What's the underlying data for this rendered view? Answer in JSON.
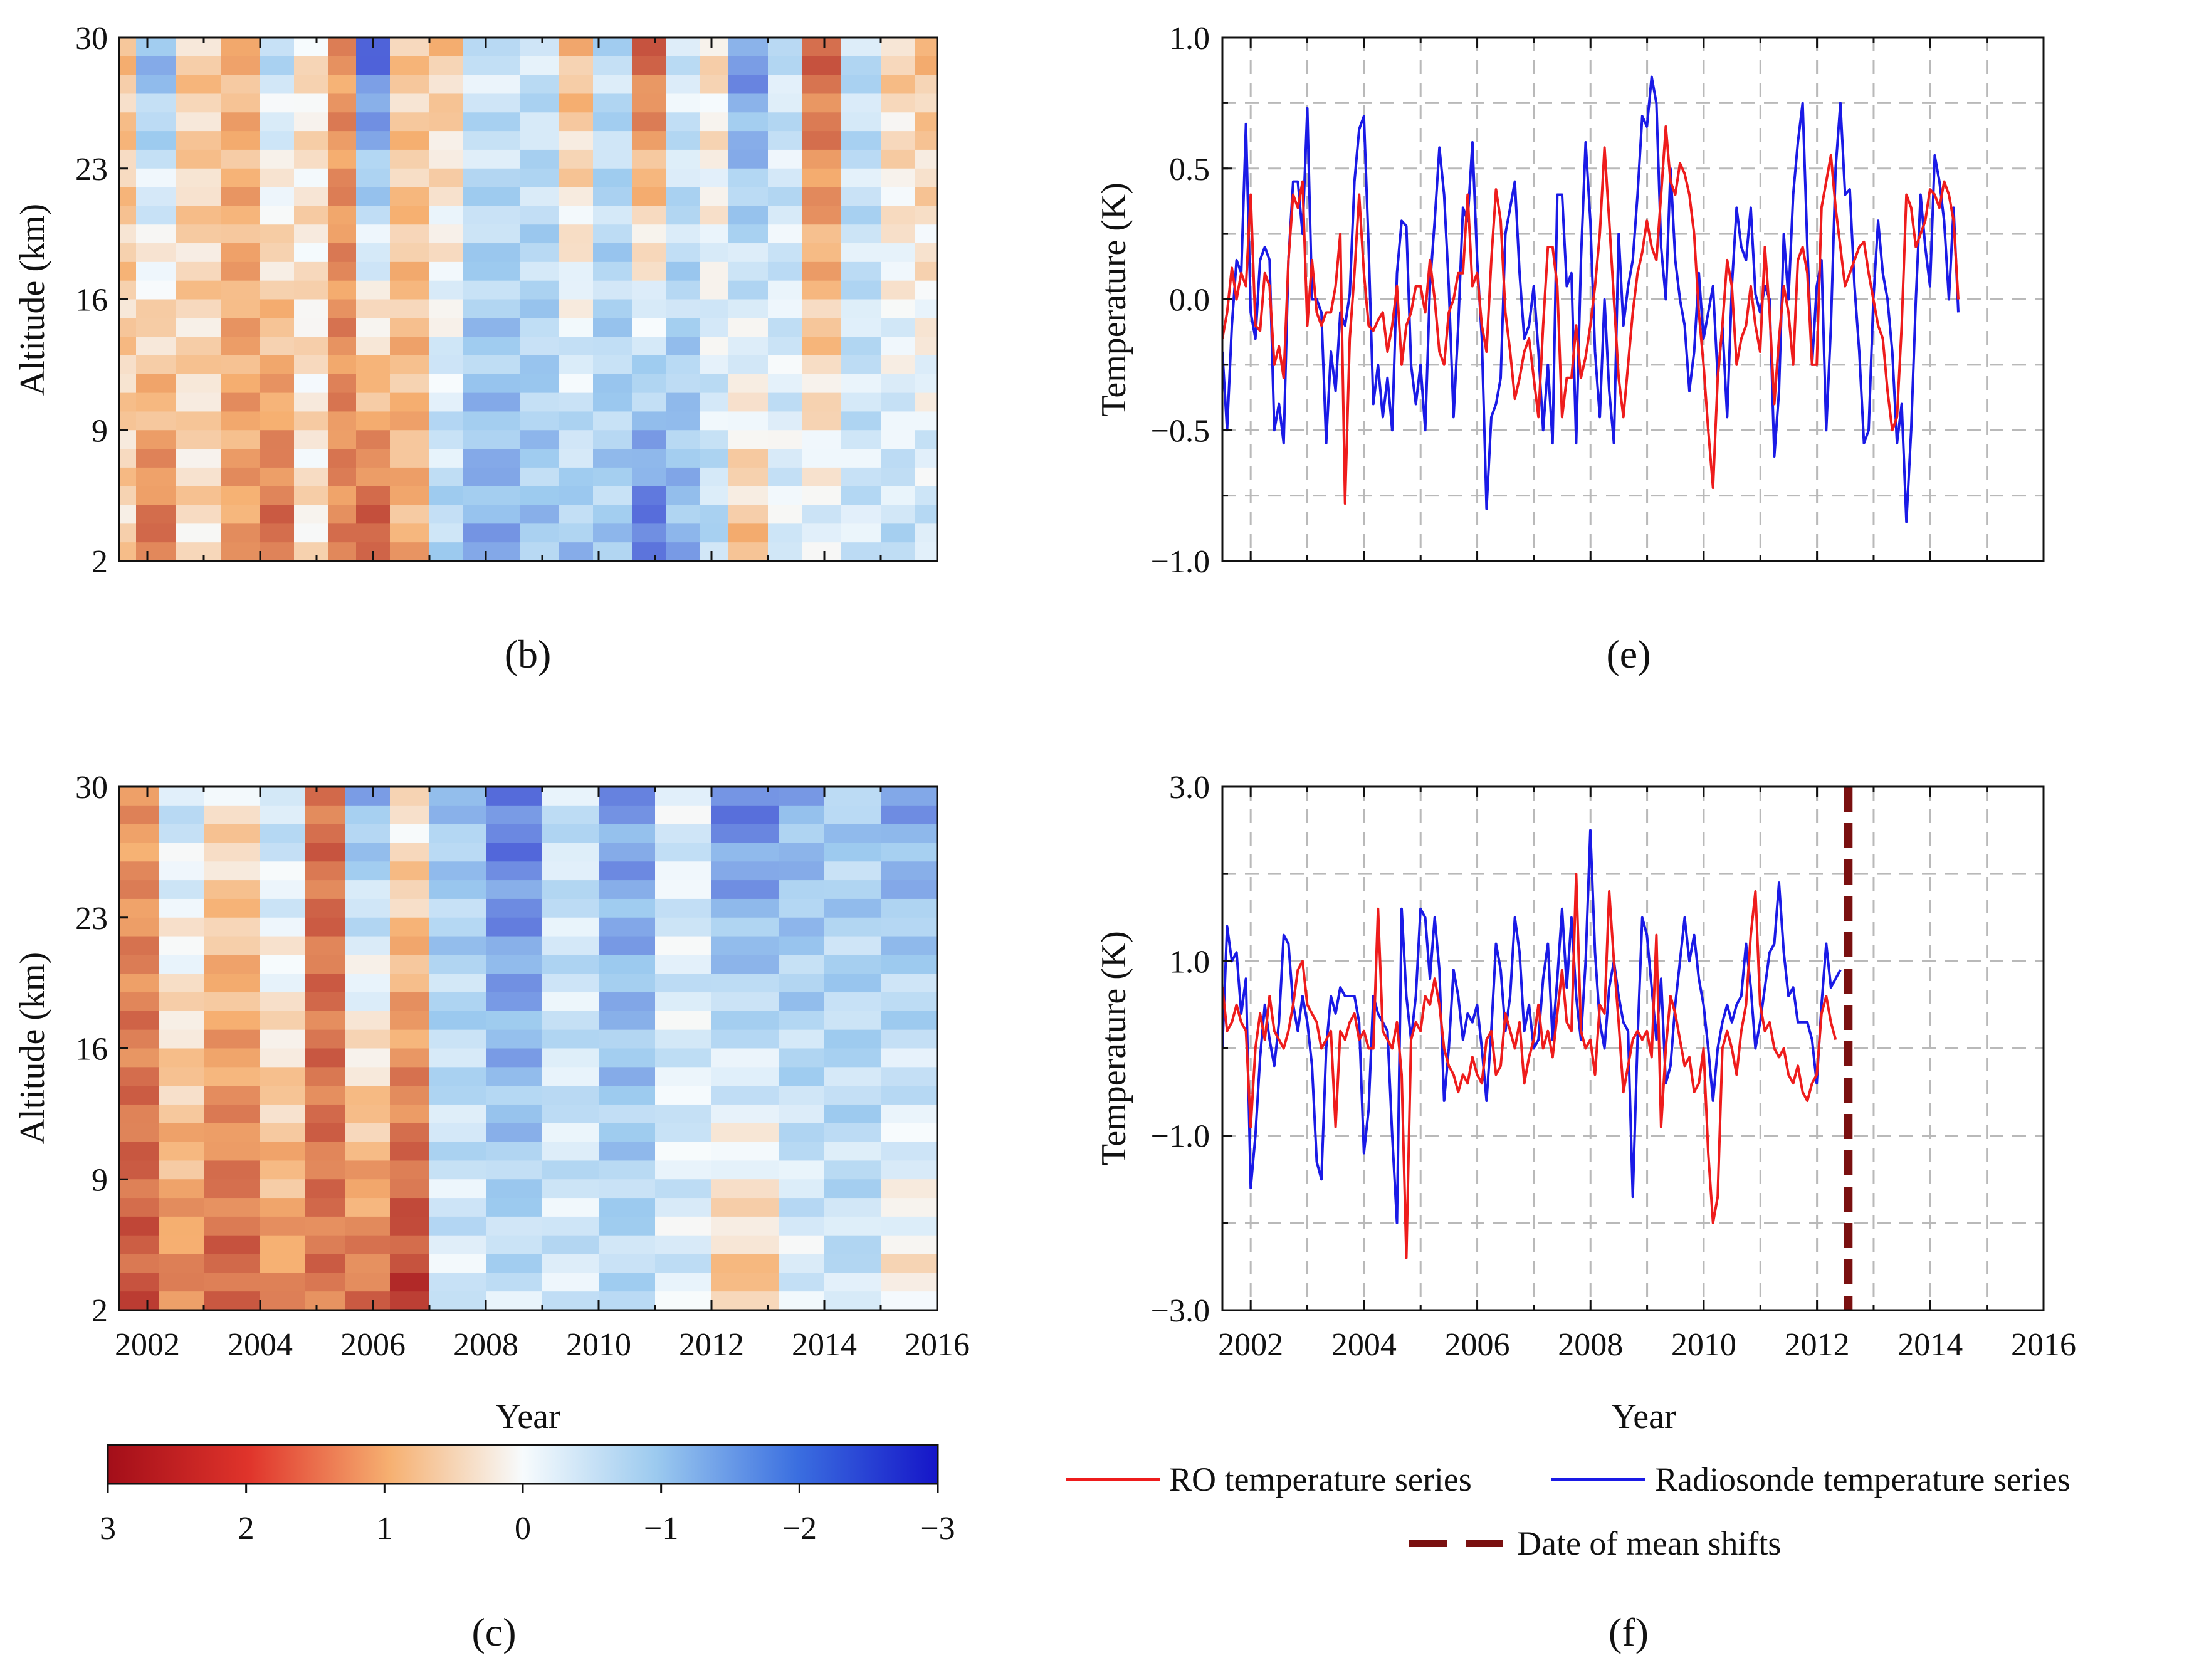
{
  "panels": {
    "b": {
      "label": "(b)"
    },
    "c": {
      "label": "(c)"
    },
    "e": {
      "label": "(e)"
    },
    "f": {
      "label": "(f)"
    }
  },
  "colorbar": {
    "ticks": [
      "3",
      "2",
      "1",
      "0",
      "−1",
      "−2",
      "−3"
    ],
    "range": [
      3,
      -3
    ],
    "colors": {
      "pos3": "#a30e19",
      "pos1": "#f6b071",
      "zero": "#f7fbfd",
      "neg1": "#9ccaef",
      "neg3": "#1515c8"
    }
  },
  "legend": {
    "ro": "RO temperature series",
    "radiosonde": "Radiosonde temperature series",
    "shift": "Date of mean shifts"
  },
  "chart_data": [
    {
      "id": "b",
      "type": "heatmap",
      "ylabel": "Altitude (km)",
      "xlabel": "",
      "yticks": [
        "2",
        "9",
        "16",
        "23",
        "30"
      ],
      "xlim": [
        2001.5,
        2016.0
      ],
      "ylim": [
        2,
        30
      ],
      "color_range": [
        -3,
        3
      ],
      "bands": [
        {
          "x": [
            2001.5,
            2001.8
          ],
          "top": 0.7,
          "bottom": 0.5
        },
        {
          "x": [
            2001.8,
            2002.5
          ],
          "top": -1.2,
          "bottom": 1.8
        },
        {
          "x": [
            2002.5,
            2003.3
          ],
          "top": 0.6,
          "bottom": 0.4
        },
        {
          "x": [
            2003.3,
            2004.0
          ],
          "top": 0.9,
          "bottom": 1.2
        },
        {
          "x": [
            2004.0,
            2004.6
          ],
          "top": -0.6,
          "bottom": 1.9
        },
        {
          "x": [
            2004.6,
            2005.2
          ],
          "top": 0.3,
          "bottom": 0.3
        },
        {
          "x": [
            2005.2,
            2005.7
          ],
          "top": 1.3,
          "bottom": 1.5
        },
        {
          "x": [
            2005.7,
            2006.3
          ],
          "top": -2.0,
          "bottom": 2.2
        },
        {
          "x": [
            2006.3,
            2007.0
          ],
          "top": 0.6,
          "bottom": 1.0
        },
        {
          "x": [
            2007.0,
            2007.6
          ],
          "top": 0.7,
          "bottom": -0.8
        },
        {
          "x": [
            2007.6,
            2008.6
          ],
          "top": -0.4,
          "bottom": -1.3
        },
        {
          "x": [
            2008.6,
            2009.3
          ],
          "top": -0.5,
          "bottom": -1.0
        },
        {
          "x": [
            2009.3,
            2009.9
          ],
          "top": 0.9,
          "bottom": -1.0
        },
        {
          "x": [
            2009.9,
            2010.6
          ],
          "top": -0.6,
          "bottom": -0.9
        },
        {
          "x": [
            2010.6,
            2011.2
          ],
          "top": 1.9,
          "bottom": -2.1
        },
        {
          "x": [
            2011.2,
            2011.8
          ],
          "top": -0.3,
          "bottom": -1.2
        },
        {
          "x": [
            2011.8,
            2012.3
          ],
          "top": 0.4,
          "bottom": -0.7
        },
        {
          "x": [
            2012.3,
            2013.0
          ],
          "top": -1.6,
          "bottom": 0.8
        },
        {
          "x": [
            2013.0,
            2013.6
          ],
          "top": -0.5,
          "bottom": -0.2
        },
        {
          "x": [
            2013.6,
            2014.3
          ],
          "top": 1.9,
          "bottom": -0.3
        },
        {
          "x": [
            2014.3,
            2015.0
          ],
          "top": -0.6,
          "bottom": -0.4
        },
        {
          "x": [
            2015.0,
            2015.6
          ],
          "top": 0.6,
          "bottom": -0.6
        },
        {
          "x": [
            2015.6,
            2016.0
          ],
          "top": 0.8,
          "bottom": -0.5
        }
      ]
    },
    {
      "id": "c",
      "type": "heatmap",
      "ylabel": "Altitude (km)",
      "xlabel": "Year",
      "yticks": [
        "2",
        "9",
        "16",
        "23",
        "30"
      ],
      "xticks": [
        "2002",
        "2004",
        "2006",
        "2008",
        "2010",
        "2012",
        "2014",
        "2016"
      ],
      "xlim": [
        2001.5,
        2016.0
      ],
      "ylim": [
        2,
        30
      ],
      "color_range": [
        -3,
        3
      ],
      "bands": [
        {
          "x": [
            2001.5,
            2002.2
          ],
          "top": 1.2,
          "bottom": 2.1
        },
        {
          "x": [
            2002.2,
            2003.0
          ],
          "top": -0.5,
          "bottom": 1.5
        },
        {
          "x": [
            2003.0,
            2004.0
          ],
          "top": 0.3,
          "bottom": 2.0
        },
        {
          "x": [
            2004.0,
            2004.8
          ],
          "top": -0.6,
          "bottom": 1.4
        },
        {
          "x": [
            2004.8,
            2005.5
          ],
          "top": 1.8,
          "bottom": 1.7
        },
        {
          "x": [
            2005.5,
            2006.3
          ],
          "top": -1.2,
          "bottom": 1.8
        },
        {
          "x": [
            2006.3,
            2007.0
          ],
          "top": 0.2,
          "bottom": 2.4
        },
        {
          "x": [
            2007.0,
            2008.0
          ],
          "top": -1.0,
          "bottom": -0.3
        },
        {
          "x": [
            2008.0,
            2009.0
          ],
          "top": -1.9,
          "bottom": -0.5
        },
        {
          "x": [
            2009.0,
            2010.0
          ],
          "top": -0.5,
          "bottom": -0.4
        },
        {
          "x": [
            2010.0,
            2011.0
          ],
          "top": -1.5,
          "bottom": -0.6
        },
        {
          "x": [
            2011.0,
            2012.0
          ],
          "top": -0.3,
          "bottom": -0.3
        },
        {
          "x": [
            2012.0,
            2013.2
          ],
          "top": -1.8,
          "bottom": 0.8
        },
        {
          "x": [
            2013.2,
            2014.0
          ],
          "top": -1.2,
          "bottom": -0.2
        },
        {
          "x": [
            2014.0,
            2015.0
          ],
          "top": -0.9,
          "bottom": -0.5
        },
        {
          "x": [
            2015.0,
            2016.0
          ],
          "top": -1.4,
          "bottom": 0.3
        }
      ]
    },
    {
      "id": "e",
      "type": "line",
      "ylabel": "Temperature (K)",
      "xlabel": "",
      "xlim": [
        2001.5,
        2016.0
      ],
      "ylim": [
        -1.0,
        1.0
      ],
      "yticks": [
        "1.0",
        "0.5",
        "0.0",
        "−0.5",
        "−1.0"
      ],
      "grid_x": [
        2002,
        2003,
        2004,
        2005,
        2006,
        2007,
        2008,
        2009,
        2010,
        2011,
        2012,
        2013,
        2014,
        2015
      ],
      "grid_y": [
        0.75,
        0.5,
        0.25,
        0,
        -0.25,
        -0.5,
        -0.75
      ],
      "x0": 2001.5,
      "dx": 0.0833,
      "series": [
        {
          "name": "RO temperature series",
          "color": "#ee1c1c",
          "values": [
            -0.15,
            -0.05,
            0.12,
            0.0,
            0.1,
            0.05,
            0.4,
            -0.1,
            -0.12,
            0.1,
            0.05,
            -0.25,
            -0.18,
            -0.3,
            0.15,
            0.4,
            0.35,
            0.45,
            -0.1,
            0.15,
            -0.05,
            -0.1,
            -0.05,
            -0.05,
            0.05,
            0.25,
            -0.78,
            -0.15,
            0.1,
            0.4,
            0.1,
            -0.1,
            -0.12,
            -0.08,
            -0.05,
            -0.2,
            -0.1,
            0.05,
            -0.25,
            -0.1,
            -0.05,
            0.05,
            0.05,
            -0.05,
            0.15,
            0.0,
            -0.2,
            -0.25,
            -0.05,
            0.0,
            0.1,
            0.1,
            0.4,
            0.05,
            0.1,
            -0.1,
            -0.2,
            0.15,
            0.42,
            0.3,
            -0.05,
            -0.2,
            -0.38,
            -0.3,
            -0.2,
            -0.15,
            -0.3,
            -0.45,
            -0.1,
            0.2,
            0.2,
            0.05,
            -0.45,
            -0.3,
            -0.3,
            -0.1,
            -0.3,
            -0.22,
            -0.1,
            0.05,
            0.25,
            0.58,
            0.3,
            0.0,
            -0.3,
            -0.45,
            -0.25,
            -0.05,
            0.1,
            0.18,
            0.3,
            0.2,
            0.15,
            0.4,
            0.66,
            0.45,
            0.4,
            0.52,
            0.48,
            0.4,
            0.25,
            -0.05,
            -0.25,
            -0.5,
            -0.72,
            -0.3,
            -0.1,
            0.15,
            0.05,
            -0.25,
            -0.15,
            -0.1,
            0.05,
            -0.1,
            -0.2,
            0.2,
            -0.05,
            -0.4,
            -0.15,
            0.05,
            -0.05,
            -0.25,
            0.15,
            0.2,
            0.1,
            -0.25,
            -0.25,
            0.35,
            0.45,
            0.55,
            0.35,
            0.2,
            0.05,
            0.1,
            0.15,
            0.2,
            0.22,
            0.1,
            0.0,
            -0.1,
            -0.15,
            -0.35,
            -0.5,
            -0.45,
            -0.1,
            0.4,
            0.35,
            0.2,
            0.25,
            0.3,
            0.42,
            0.4,
            0.35,
            0.45,
            0.4,
            0.3,
            0.0
          ]
        },
        {
          "name": "Radiosonde temperature series",
          "color": "#1a1ae6",
          "values": [
            -0.2,
            -0.5,
            -0.1,
            0.15,
            0.1,
            0.67,
            -0.05,
            -0.15,
            0.15,
            0.2,
            0.15,
            -0.5,
            -0.4,
            -0.55,
            0.15,
            0.45,
            0.45,
            0.25,
            0.73,
            0.0,
            0.0,
            -0.05,
            -0.55,
            -0.2,
            -0.35,
            -0.05,
            -0.1,
            0.02,
            0.45,
            0.65,
            0.7,
            0.2,
            -0.4,
            -0.25,
            -0.45,
            -0.3,
            -0.5,
            0.1,
            0.3,
            0.28,
            -0.25,
            -0.4,
            -0.25,
            -0.5,
            0.05,
            0.3,
            0.58,
            0.4,
            0.05,
            -0.45,
            -0.1,
            0.35,
            0.3,
            0.6,
            0.15,
            -0.15,
            -0.8,
            -0.45,
            -0.4,
            -0.3,
            0.25,
            0.35,
            0.45,
            0.1,
            -0.15,
            -0.1,
            0.05,
            -0.2,
            -0.5,
            -0.25,
            -0.55,
            0.4,
            0.4,
            0.05,
            0.1,
            -0.55,
            0.15,
            0.6,
            0.3,
            -0.2,
            -0.45,
            0.0,
            -0.35,
            -0.55,
            0.25,
            -0.1,
            0.05,
            0.15,
            0.4,
            0.7,
            0.66,
            0.85,
            0.75,
            0.2,
            0.0,
            0.5,
            0.15,
            0.0,
            -0.1,
            -0.35,
            -0.2,
            0.1,
            -0.15,
            -0.05,
            0.05,
            -0.3,
            -0.1,
            -0.45,
            0.05,
            0.35,
            0.2,
            0.15,
            0.35,
            0.02,
            -0.05,
            0.05,
            0.0,
            -0.6,
            -0.35,
            0.25,
            0.0,
            0.4,
            0.6,
            0.75,
            0.2,
            -0.25,
            0.05,
            0.15,
            -0.5,
            -0.1,
            0.5,
            0.75,
            0.4,
            0.42,
            0.05,
            -0.2,
            -0.55,
            -0.5,
            0.0,
            0.3,
            0.1,
            0.0,
            -0.2,
            -0.55,
            -0.4,
            -0.85,
            -0.5,
            0.0,
            0.4,
            0.2,
            0.05,
            0.55,
            0.45,
            0.3,
            0.0,
            0.35,
            -0.05
          ]
        }
      ]
    },
    {
      "id": "f",
      "type": "line",
      "ylabel": "Temperature (K)",
      "xlabel": "Year",
      "xlim": [
        2001.5,
        2016.0
      ],
      "ylim": [
        -3.0,
        3.0
      ],
      "yticks": [
        "3.0",
        "1.0",
        "−1.0",
        "−3.0"
      ],
      "xticks": [
        "2002",
        "2004",
        "2006",
        "2008",
        "2010",
        "2012",
        "2014",
        "2016"
      ],
      "grid_x": [
        2002,
        2003,
        2004,
        2005,
        2006,
        2007,
        2008,
        2009,
        2010,
        2011,
        2012,
        2013,
        2014,
        2015
      ],
      "grid_y": [
        2,
        1,
        0,
        -1,
        -2
      ],
      "mean_shift_x": 2012.55,
      "x0": 2001.5,
      "dx": 0.0833,
      "series": [
        {
          "name": "RO temperature series",
          "color": "#ee1c1c",
          "values": [
            0.7,
            0.2,
            0.3,
            0.5,
            0.3,
            0.2,
            -0.9,
            0.0,
            0.4,
            0.1,
            0.6,
            0.2,
            0.1,
            0.0,
            0.2,
            0.5,
            0.9,
            1.0,
            0.5,
            0.4,
            0.3,
            0.0,
            0.1,
            0.2,
            -0.9,
            0.2,
            0.1,
            0.3,
            0.4,
            0.1,
            0.2,
            0.0,
            0.0,
            1.6,
            0.2,
            0.1,
            0.0,
            0.3,
            -0.3,
            -2.4,
            0.1,
            0.3,
            0.2,
            0.6,
            0.5,
            0.8,
            0.5,
            0.0,
            -0.2,
            -0.3,
            -0.5,
            -0.3,
            -0.4,
            -0.1,
            -0.3,
            -0.4,
            0.1,
            0.2,
            -0.3,
            -0.2,
            0.4,
            0.2,
            0.0,
            0.3,
            -0.4,
            -0.1,
            0.1,
            0.5,
            0.0,
            0.2,
            -0.1,
            0.4,
            0.9,
            0.3,
            0.2,
            2.0,
            0.2,
            0.0,
            0.1,
            -0.3,
            0.5,
            0.4,
            1.8,
            1.0,
            0.3,
            -0.5,
            -0.2,
            0.1,
            0.2,
            0.1,
            0.2,
            -0.1,
            1.3,
            -0.9,
            0.0,
            0.6,
            0.4,
            0.1,
            -0.2,
            -0.1,
            -0.5,
            -0.4,
            0.0,
            -1.2,
            -2.0,
            -1.7,
            0.0,
            0.2,
            0.0,
            -0.3,
            0.2,
            0.5,
            1.3,
            1.8,
            0.5,
            0.2,
            0.3,
            0.0,
            -0.1,
            0.0,
            -0.3,
            -0.4,
            -0.2,
            -0.5,
            -0.6,
            -0.4,
            -0.3,
            0.4,
            0.6,
            0.3,
            0.1
          ]
        },
        {
          "name": "Radiosonde temperature series",
          "color": "#1a1ae6",
          "values": [
            0.0,
            1.4,
            1.0,
            1.1,
            0.4,
            0.8,
            -1.6,
            -1.0,
            -0.1,
            0.5,
            0.1,
            -0.2,
            0.3,
            1.3,
            1.2,
            0.5,
            0.2,
            0.6,
            0.3,
            -0.2,
            -1.3,
            -1.5,
            0.0,
            0.6,
            0.4,
            0.7,
            0.6,
            0.6,
            0.6,
            0.3,
            -1.2,
            -0.7,
            0.6,
            0.4,
            0.3,
            0.2,
            -1.0,
            -2.0,
            1.6,
            0.6,
            0.1,
            0.6,
            1.6,
            1.5,
            0.8,
            1.5,
            0.9,
            -0.6,
            0.0,
            0.9,
            0.6,
            0.1,
            0.4,
            0.3,
            0.5,
            0.0,
            -0.6,
            0.2,
            1.2,
            0.9,
            0.2,
            0.6,
            1.5,
            1.1,
            0.2,
            0.5,
            0.0,
            0.1,
            0.8,
            1.2,
            0.1,
            0.8,
            1.6,
            0.7,
            1.5,
            0.6,
            0.1,
            1.0,
            2.5,
            1.1,
            0.3,
            0.0,
            0.7,
            1.0,
            0.6,
            0.3,
            0.2,
            -1.7,
            0.1,
            1.5,
            1.3,
            0.7,
            0.1,
            0.8,
            -0.4,
            -0.2,
            0.5,
            1.0,
            1.5,
            1.0,
            1.3,
            0.8,
            0.5,
            0.0,
            -0.6,
            0.0,
            0.3,
            0.5,
            0.3,
            0.5,
            0.6,
            1.2,
            0.7,
            0.0,
            0.3,
            0.7,
            1.1,
            1.2,
            1.9,
            1.1,
            0.6,
            0.7,
            0.3,
            0.3,
            0.3,
            0.1,
            -0.4,
            0.5,
            1.2,
            0.7,
            0.8,
            0.9
          ]
        }
      ]
    }
  ]
}
